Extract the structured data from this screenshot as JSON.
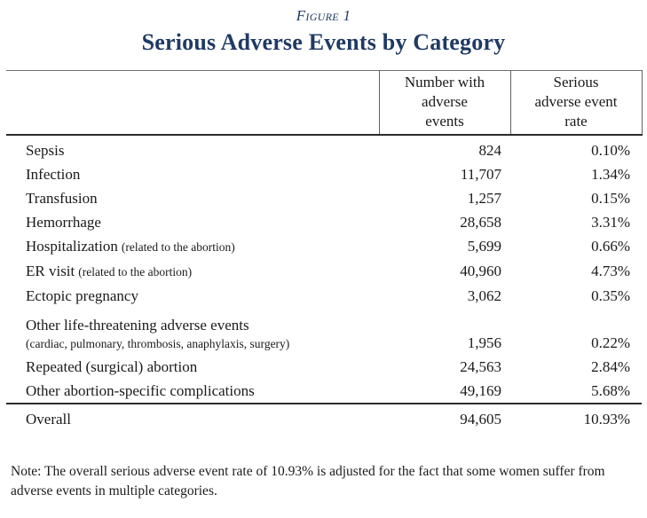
{
  "figure_label": "Figure 1",
  "title": "Serious Adverse Events by Category",
  "colors": {
    "accent_navy": "#1f3a64",
    "body_text": "#1a1a1a",
    "rule_dark": "#2b2b2b",
    "rule_light": "#707070"
  },
  "table": {
    "headers": {
      "category": "",
      "count": "Number with\nadverse\nevents",
      "rate": "Serious\nadverse event\nrate"
    },
    "rows": [
      {
        "label": "Sepsis",
        "sub": "",
        "count": "824",
        "rate": "0.10%"
      },
      {
        "label": "Infection",
        "sub": "",
        "count": "11,707",
        "rate": "1.34%"
      },
      {
        "label": "Transfusion",
        "sub": "",
        "count": "1,257",
        "rate": "0.15%"
      },
      {
        "label": "Hemorrhage",
        "sub": "",
        "count": "28,658",
        "rate": "3.31%"
      },
      {
        "label": "Hospitalization",
        "sub": "(related to the abortion)",
        "count": "5,699",
        "rate": "0.66%"
      },
      {
        "label": "ER visit",
        "sub": "(related to the abortion)",
        "count": "40,960",
        "rate": "4.73%"
      },
      {
        "label": "Ectopic pregnancy",
        "sub": "",
        "count": "3,062",
        "rate": "0.35%"
      },
      {
        "label": "Other life-threatening adverse events",
        "sub": "(cardiac, pulmonary, thrombosis, anaphylaxis, surgery)",
        "count": "1,956",
        "rate": "0.22%"
      },
      {
        "label": "Repeated (surgical) abortion",
        "sub": "",
        "count": "24,563",
        "rate": "2.84%"
      },
      {
        "label": "Other abortion-specific complications",
        "sub": "",
        "count": "49,169",
        "rate": "5.68%"
      }
    ],
    "overall": {
      "label": "Overall",
      "count": "94,605",
      "rate": "10.93%"
    }
  },
  "note": "Note: The overall serious adverse event rate of 10.93% is adjusted for the fact that some women suffer from adverse events in multiple categories."
}
